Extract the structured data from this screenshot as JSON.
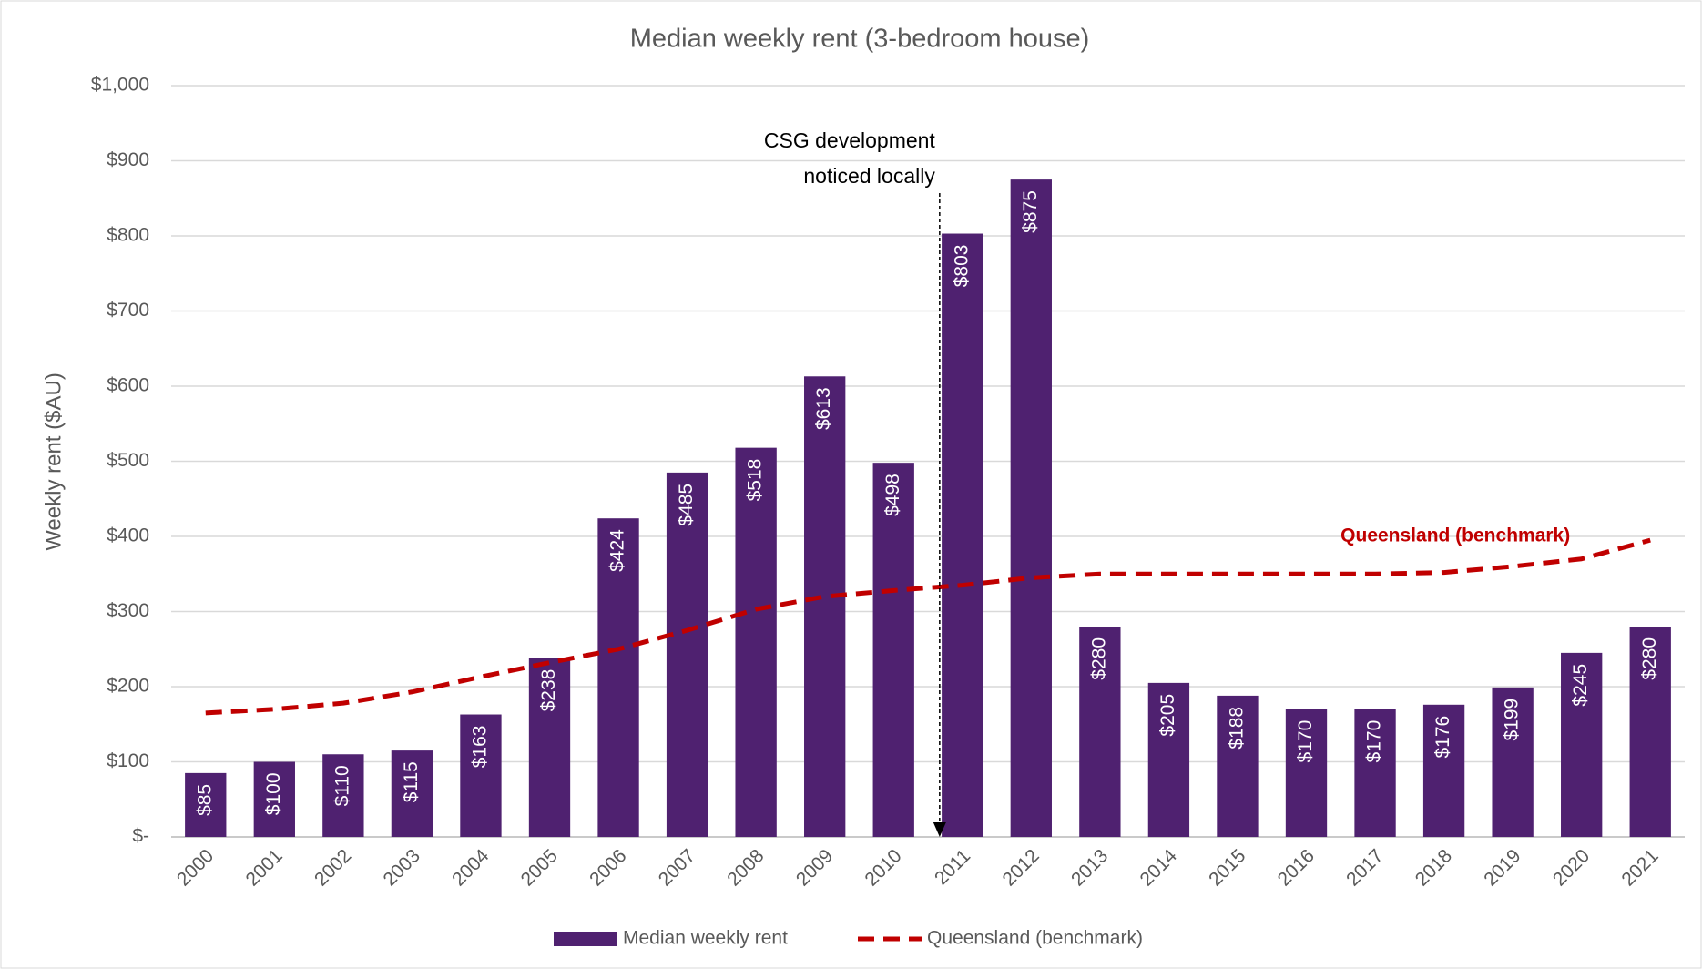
{
  "chart_data": {
    "type": "bar",
    "title": "Median weekly rent (3-bedroom house)",
    "y_label": "Weekly rent ($AU)",
    "categories": [
      "2000",
      "2001",
      "2002",
      "2003",
      "2004",
      "2005",
      "2006",
      "2007",
      "2008",
      "2009",
      "2010",
      "2011",
      "2012",
      "2013",
      "2014",
      "2015",
      "2016",
      "2017",
      "2018",
      "2019",
      "2020",
      "2021"
    ],
    "series": [
      {
        "name": "Median weekly rent",
        "color": "#4f2170",
        "type": "bar",
        "values": [
          85,
          100,
          110,
          115,
          163,
          238,
          424,
          485,
          518,
          613,
          498,
          803,
          875,
          280,
          205,
          188,
          170,
          170,
          176,
          199,
          245,
          280
        ],
        "value_labels": [
          "$85",
          "$100",
          "$110",
          "$115",
          "$163",
          "$238",
          "$424",
          "$485",
          "$518",
          "$613",
          "$498",
          "$803",
          "$875",
          "$280",
          "$205",
          "$188",
          "$170",
          "$170",
          "$176",
          "$199",
          "$245",
          "$280"
        ]
      },
      {
        "name": "Queensland (benchmark)",
        "color": "#c00000",
        "type": "line",
        "dashed": true,
        "values": [
          165,
          170,
          178,
          193,
          213,
          232,
          250,
          275,
          303,
          320,
          328,
          335,
          345,
          350,
          350,
          350,
          350,
          350,
          352,
          360,
          370,
          395
        ]
      }
    ],
    "annotation": [
      "CSG development",
      "noticed locally"
    ],
    "ylim": [
      0,
      1000
    ],
    "yticks": [
      {
        "value": 0,
        "label": "$-"
      },
      {
        "value": 100,
        "label": "$100"
      },
      {
        "value": 200,
        "label": "$200"
      },
      {
        "value": 300,
        "label": "$300"
      },
      {
        "value": 400,
        "label": "$400"
      },
      {
        "value": 500,
        "label": "$500"
      },
      {
        "value": 600,
        "label": "$600"
      },
      {
        "value": 700,
        "label": "$700"
      },
      {
        "value": 800,
        "label": "$800"
      },
      {
        "value": 900,
        "label": "$900"
      },
      {
        "value": 1000,
        "label": "$1,000"
      }
    ],
    "grid": true,
    "legend": "bottom"
  }
}
